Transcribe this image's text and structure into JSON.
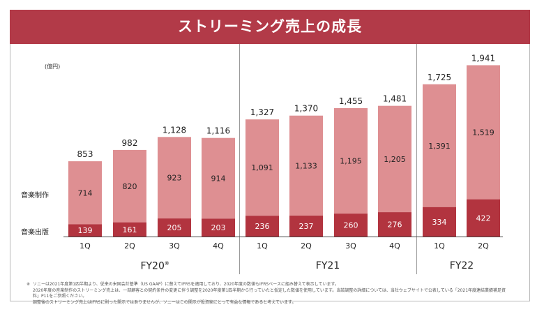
{
  "title": "ストリーミング売上の成長",
  "unit_label": "(億円)",
  "legend": {
    "production": "音楽制作",
    "publishing": "音楽出版"
  },
  "fiscal_years": {
    "fy20": "FY20",
    "fy20_mark": "※",
    "fy21": "FY21",
    "fy22": "FY22"
  },
  "colors": {
    "banner": "#b23a48",
    "production": "#de8f92",
    "publishing": "#b2343f"
  },
  "chart_data": {
    "type": "bar",
    "stacked": true,
    "title": "ストリーミング売上の成長",
    "ylabel": "(億円)",
    "categories": [
      "1Q",
      "2Q",
      "3Q",
      "4Q",
      "1Q",
      "2Q",
      "3Q",
      "4Q",
      "1Q",
      "2Q"
    ],
    "groups": [
      "FY20",
      "FY20",
      "FY20",
      "FY20",
      "FY21",
      "FY21",
      "FY21",
      "FY21",
      "FY22",
      "FY22"
    ],
    "series": [
      {
        "name": "音楽出版",
        "values": [
          139,
          161,
          205,
          203,
          236,
          237,
          260,
          276,
          334,
          422
        ]
      },
      {
        "name": "音楽制作",
        "values": [
          714,
          820,
          923,
          914,
          1091,
          1133,
          1195,
          1205,
          1391,
          1519
        ]
      }
    ],
    "totals": [
      "853",
      "982",
      "1,128",
      "1,116",
      "1,327",
      "1,370",
      "1,455",
      "1,481",
      "1,725",
      "1,941"
    ],
    "value_labels_production": [
      "714",
      "820",
      "923",
      "914",
      "1,091",
      "1,133",
      "1,195",
      "1,205",
      "1,391",
      "1,519"
    ],
    "value_labels_publishing": [
      "139",
      "161",
      "205",
      "203",
      "236",
      "237",
      "260",
      "276",
      "334",
      "422"
    ]
  },
  "notes": {
    "mark": "※",
    "line1": "ソニーは2021年度第1四半期より、従来の米国会計基準（US GAAP）に替えてIFRSを適用しており、2020年度の数値もIFRSベースに組み替えて表示しています。",
    "line2": "2020年度の音楽制作のストリーミング売上は、一部顧客との契約条件の変更に伴う調整を2020年度第1四半期から行っていたと仮定した数値を使用しています。当該調整の詳細については、当社ウェブサイトで公表している「2021年度連結業績補足資料」P11をご参照ください。",
    "line3": "調整後のストリーミング売上はIFRSに則った開示ではありませんが、ソニーはこの開示が投資家にとって有益な情報であると考えています。"
  }
}
